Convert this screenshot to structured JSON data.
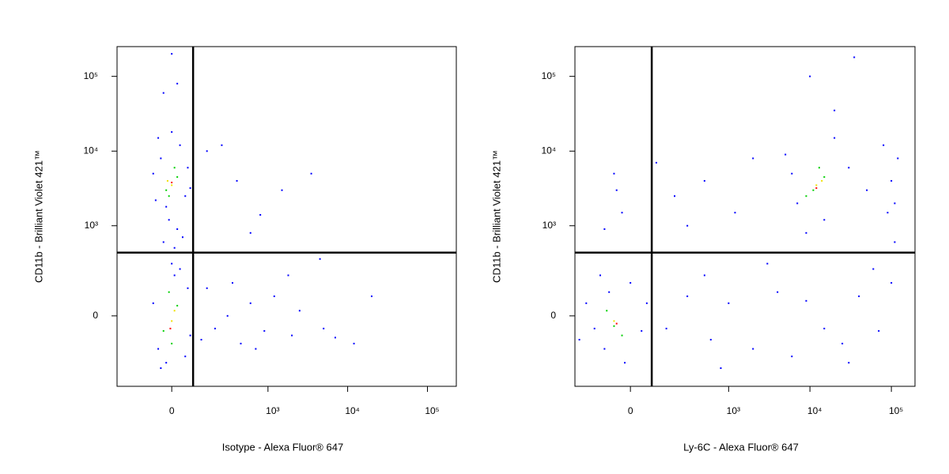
{
  "chart_data": [
    {
      "type": "scatter",
      "scale": "biexponential",
      "xlabel": "Isotype - Alexa Fluor® 647",
      "ylabel": "CD11b - Brilliant Violet 421™",
      "xlim": [
        -290,
        230000
      ],
      "ylim": [
        -540,
        250000
      ],
      "xticks": [
        0,
        {
          "value": 1000,
          "label": "10³"
        },
        {
          "value": 10000,
          "label": "10⁴"
        },
        {
          "value": 100000,
          "label": "10⁵"
        }
      ],
      "yticks": [
        0,
        {
          "value": 1000,
          "label": "10³"
        },
        {
          "value": 10000,
          "label": "10⁴"
        },
        {
          "value": 100000,
          "label": "10⁵"
        }
      ],
      "gates": {
        "x": 82,
        "y": 430
      },
      "series": [
        {
          "color": "#0000ff",
          "x": [
            -40,
            30,
            -20,
            50,
            -70,
            60,
            -10,
            20,
            -50,
            40,
            -30,
            10,
            -60,
            70,
            0,
            -50,
            60,
            -20,
            30,
            -70,
            70,
            0,
            -40,
            50,
            10,
            -30,
            0,
            20,
            150,
            250,
            400,
            1500,
            3500,
            800,
            600,
            4500,
            120,
            200,
            300,
            450,
            600,
            900,
            1200,
            2000,
            2500,
            5000,
            7000,
            12000,
            20000,
            150,
            350,
            700,
            1800
          ],
          "y": [
            8000,
            12000,
            1800,
            2500,
            5000,
            6000,
            1200,
            900,
            15000,
            700,
            600,
            500,
            2200,
            3200,
            18000,
            -150,
            120,
            -250,
            250,
            50,
            -80,
            300,
            -300,
            -200,
            200,
            60000,
            200000,
            80000,
            10000,
            12000,
            4000,
            3000,
            5000,
            1400,
            800,
            350,
            -100,
            -50,
            0,
            -120,
            50,
            -60,
            80,
            -80,
            20,
            -50,
            -90,
            -120,
            80,
            120,
            150,
            -150,
            200
          ]
        },
        {
          "color": "#00d000",
          "x": [
            -20,
            20,
            -10,
            10,
            -30,
            20,
            0,
            -10
          ],
          "y": [
            3000,
            4500,
            2500,
            6000,
            -60,
            40,
            -120,
            100
          ]
        },
        {
          "color": "#f0e000",
          "x": [
            0,
            -15,
            0,
            10
          ],
          "y": [
            3500,
            4000,
            -20,
            20
          ]
        },
        {
          "color": "#ff0000",
          "x": [
            0,
            -5
          ],
          "y": [
            3800,
            -50
          ]
        }
      ]
    },
    {
      "type": "scatter",
      "scale": "biexponential",
      "xlabel": "Ly-6C - Alexa Fluor® 647",
      "ylabel": "CD11b - Brilliant Violet 421™",
      "xlim": [
        -287,
        195000
      ],
      "ylim": [
        -540,
        250000
      ],
      "xticks": [
        0,
        {
          "value": 1000,
          "label": "10³"
        },
        {
          "value": 10000,
          "label": "10⁴"
        },
        {
          "value": 100000,
          "label": "10⁵"
        }
      ],
      "yticks": [
        0,
        {
          "value": 1000,
          "label": "10³"
        },
        {
          "value": 10000,
          "label": "10⁴"
        },
        {
          "value": 100000,
          "label": "10⁵"
        }
      ],
      "gates": {
        "x": 80,
        "y": 430
      },
      "series": [
        {
          "color": "#0000ff",
          "x": [
            -150,
            -200,
            -100,
            -250,
            -80,
            -20,
            0,
            40,
            60,
            -120,
            150,
            300,
            600,
            1000,
            2000,
            4000,
            6000,
            9000,
            15000,
            25000,
            40000,
            70000,
            100000,
            60000,
            30000,
            3000,
            800,
            500,
            110000,
            100000,
            120000,
            90000,
            110000,
            80000,
            5000,
            7000,
            20000,
            30000,
            9000,
            15000,
            50000,
            6000,
            -50,
            -30,
            -100,
            100,
            200,
            500,
            1200,
            2000,
            300,
            -60,
            10000,
            35000,
            20000
          ],
          "y": [
            -50,
            50,
            -150,
            -100,
            100,
            -250,
            150,
            -60,
            50,
            200,
            -50,
            80,
            -100,
            50,
            -150,
            100,
            -200,
            60,
            -50,
            -120,
            80,
            -60,
            150,
            250,
            -250,
            300,
            -300,
            200,
            2000,
            4000,
            8000,
            1500,
            600,
            12000,
            9000,
            2000,
            15000,
            6000,
            800,
            1200,
            3000,
            5000,
            3000,
            1500,
            900,
            7000,
            2500,
            4000,
            1500,
            8000,
            1000,
            5000,
            100000,
            180000,
            35000
          ]
        },
        {
          "color": "#00d000",
          "x": [
            -60,
            -90,
            -30,
            11000,
            15000,
            9000,
            13000
          ],
          "y": [
            -40,
            20,
            -80,
            3000,
            4500,
            2500,
            6000
          ]
        },
        {
          "color": "#f0e000",
          "x": [
            -60,
            12000,
            14000
          ],
          "y": [
            -20,
            3500,
            4000
          ]
        },
        {
          "color": "#ff0000",
          "x": [
            -50,
            12000
          ],
          "y": [
            -30,
            3200
          ]
        }
      ]
    }
  ]
}
